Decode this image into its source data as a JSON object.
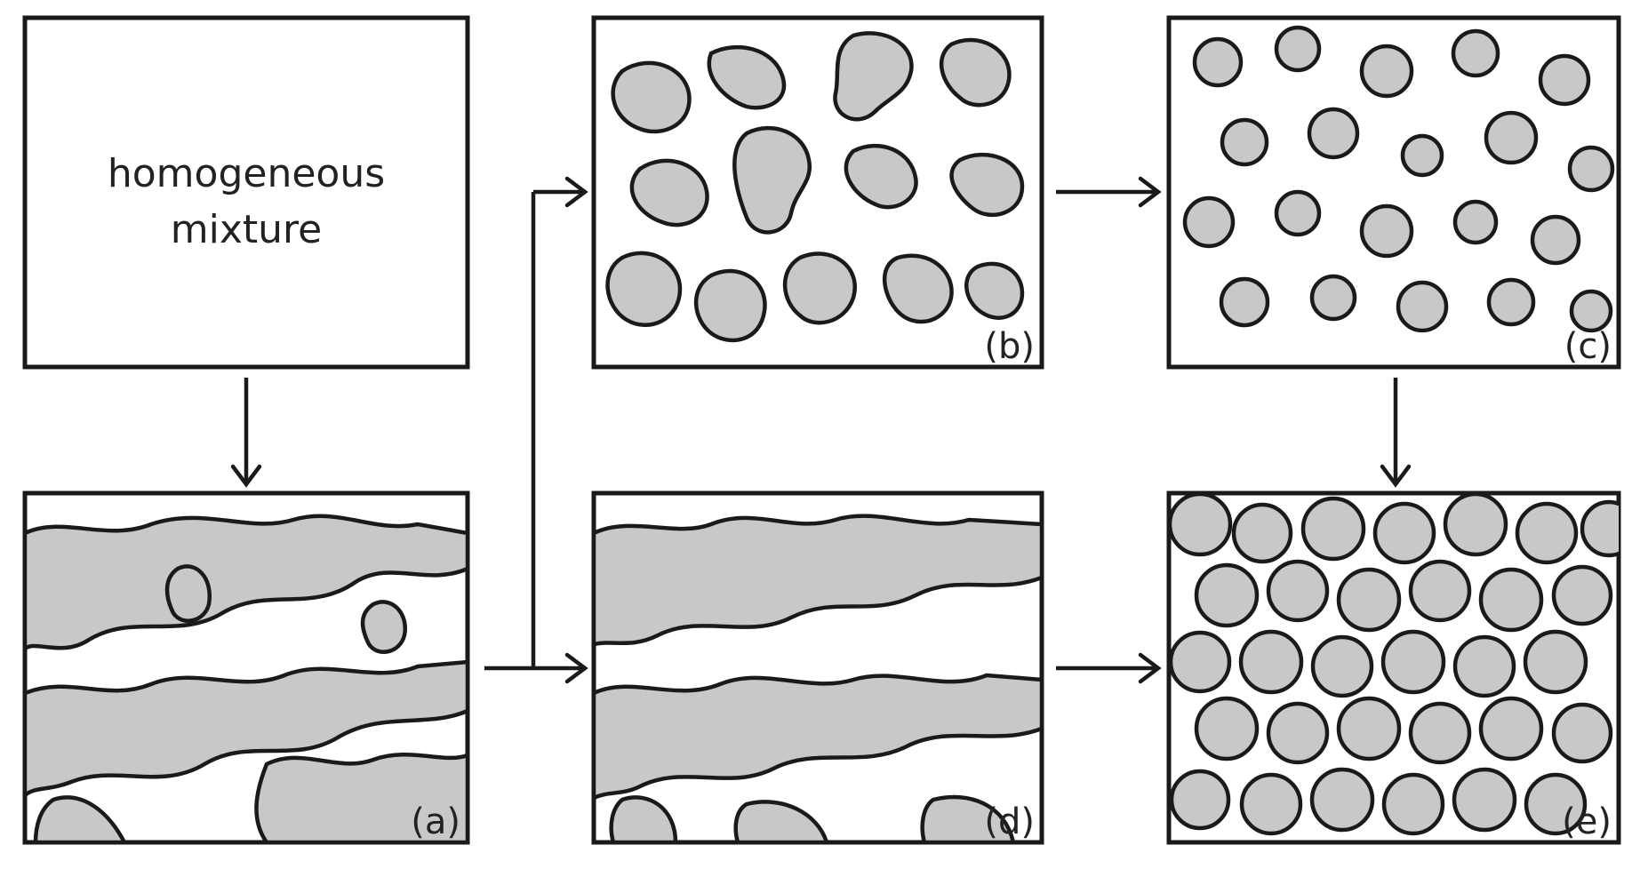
{
  "diagram": {
    "start_box": {
      "line1": "homogeneous",
      "line2": "mixture"
    },
    "panels": [
      {
        "id": "a",
        "label": "(a)",
        "morphology": "interconnected-labyrinth"
      },
      {
        "id": "b",
        "label": "(b)",
        "morphology": "elongated-droplets"
      },
      {
        "id": "c",
        "label": "(c)",
        "morphology": "isolated-droplets"
      },
      {
        "id": "d",
        "label": "(d)",
        "morphology": "coarse-bicontinuous"
      },
      {
        "id": "e",
        "label": "(e)",
        "morphology": "packed-droplets"
      }
    ],
    "arrows": [
      {
        "from": "start_box",
        "to": "a"
      },
      {
        "from": "a",
        "to": "b"
      },
      {
        "from": "a",
        "to": "d"
      },
      {
        "from": "b",
        "to": "c"
      },
      {
        "from": "c",
        "to": "e"
      },
      {
        "from": "d",
        "to": "e"
      }
    ],
    "colors": {
      "domain_fill": "#c8c8c8",
      "outline": "#1a1a1a",
      "background": "#ffffff"
    }
  }
}
